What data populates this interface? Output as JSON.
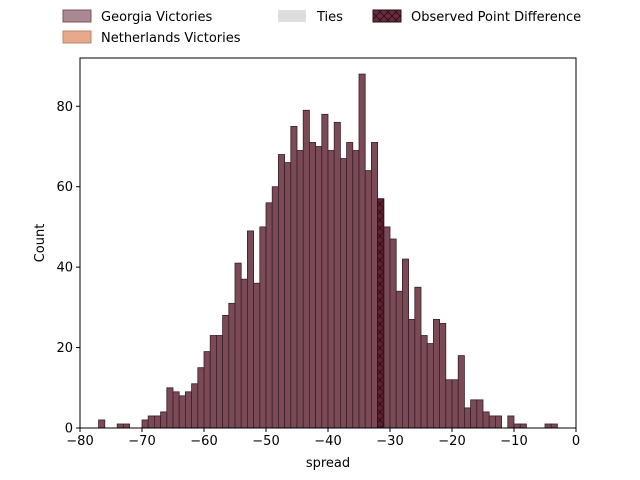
{
  "chart_data": {
    "type": "bar",
    "title": "",
    "xlabel": "spread",
    "ylabel": "Count",
    "xlim": [
      -80,
      0
    ],
    "ylim": [
      0,
      92
    ],
    "xticks": [
      -80,
      -70,
      -60,
      -50,
      -40,
      -30,
      -20,
      -10,
      0
    ],
    "yticks": [
      0,
      20,
      40,
      60,
      80
    ],
    "bin_width": 1,
    "grid": false,
    "legend_placement": "top, outside plot, 3 columns",
    "legend": [
      {
        "label": "Georgia Victories",
        "color": "#a98890",
        "hatch": false
      },
      {
        "label": "Netherlands Victories",
        "color": "#e8a98a",
        "hatch": false
      },
      {
        "label": "Ties",
        "color": "#dddddd",
        "hatch": false
      },
      {
        "label": "Observed Point Difference",
        "color": "#6b2a3c",
        "hatch": true
      }
    ],
    "series": [
      {
        "name": "Georgia Victories",
        "color": "#7a4a56",
        "edge_color": "#3a1f28",
        "bins": [
          [
            -77,
            2
          ],
          [
            -74,
            1
          ],
          [
            -73,
            1
          ],
          [
            -70,
            2
          ],
          [
            -69,
            3
          ],
          [
            -68,
            3
          ],
          [
            -67,
            4
          ],
          [
            -66,
            10
          ],
          [
            -65,
            9
          ],
          [
            -64,
            8
          ],
          [
            -63,
            9
          ],
          [
            -62,
            11
          ],
          [
            -61,
            15
          ],
          [
            -60,
            19
          ],
          [
            -59,
            23
          ],
          [
            -58,
            23
          ],
          [
            -57,
            28
          ],
          [
            -56,
            31
          ],
          [
            -55,
            41
          ],
          [
            -54,
            37
          ],
          [
            -53,
            49
          ],
          [
            -52,
            36
          ],
          [
            -51,
            50
          ],
          [
            -50,
            56
          ],
          [
            -49,
            60
          ],
          [
            -48,
            68
          ],
          [
            -47,
            66
          ],
          [
            -46,
            75
          ],
          [
            -45,
            69
          ],
          [
            -44,
            79
          ],
          [
            -43,
            71
          ],
          [
            -42,
            70
          ],
          [
            -41,
            78
          ],
          [
            -40,
            69
          ],
          [
            -39,
            76
          ],
          [
            -38,
            67
          ],
          [
            -37,
            71
          ],
          [
            -36,
            69
          ],
          [
            -35,
            88
          ],
          [
            -34,
            64
          ],
          [
            -33,
            71
          ],
          [
            -32,
            57
          ],
          [
            -31,
            50
          ],
          [
            -30,
            47
          ],
          [
            -29,
            34
          ],
          [
            -28,
            42
          ],
          [
            -27,
            27
          ],
          [
            -26,
            35
          ],
          [
            -25,
            23
          ],
          [
            -24,
            21
          ],
          [
            -23,
            27
          ],
          [
            -22,
            26
          ],
          [
            -21,
            12
          ],
          [
            -20,
            12
          ],
          [
            -19,
            18
          ],
          [
            -18,
            5
          ],
          [
            -17,
            7
          ],
          [
            -16,
            7
          ],
          [
            -15,
            4
          ],
          [
            -14,
            3
          ],
          [
            -13,
            3
          ],
          [
            -11,
            3
          ],
          [
            -10,
            1
          ],
          [
            -9,
            1
          ],
          [
            -5,
            1
          ],
          [
            -4,
            1
          ]
        ]
      }
    ],
    "observed_point_difference": {
      "x": -32,
      "count": 57
    }
  }
}
